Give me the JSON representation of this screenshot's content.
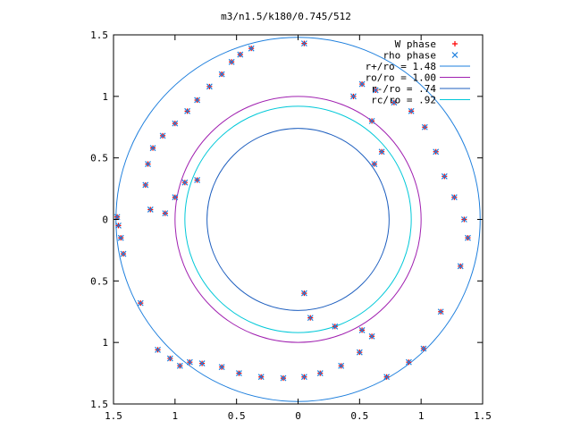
{
  "chart_data": {
    "type": "scatter",
    "title": "m3/n1.5/k180/0.745/512",
    "xlabel": "",
    "ylabel": "",
    "xlim": [
      -1.5,
      1.5
    ],
    "ylim": [
      -1.5,
      1.5
    ],
    "x_ticks": [
      -1.5,
      -1,
      -0.5,
      0,
      0.5,
      1,
      1.5
    ],
    "y_ticks": [
      1.5,
      1,
      0.5,
      0,
      -0.5,
      -1,
      -1.5
    ],
    "x_tick_labels": [
      "1.5",
      "1",
      "0.5",
      "0",
      "0.5",
      "1",
      "1.5"
    ],
    "y_tick_labels": [
      "1.5",
      "1",
      "0.5",
      "0",
      "0.5",
      "1",
      "1.5"
    ],
    "grid": false,
    "legend_position": "top-right",
    "series": [
      {
        "name": "W phase",
        "kind": "points",
        "marker": "+",
        "color": "#ff0000",
        "points": [
          [
            -1.47,
            0.02
          ],
          [
            -1.46,
            -0.05
          ],
          [
            -1.44,
            -0.15
          ],
          [
            -1.42,
            -0.28
          ],
          [
            -1.28,
            -0.68
          ],
          [
            -1.14,
            -1.06
          ],
          [
            -1.04,
            -1.13
          ],
          [
            -0.96,
            -1.19
          ],
          [
            -0.88,
            -1.16
          ],
          [
            -0.78,
            -1.17
          ],
          [
            -0.62,
            -1.2
          ],
          [
            -0.48,
            -1.25
          ],
          [
            -0.3,
            -1.28
          ],
          [
            -0.12,
            -1.29
          ],
          [
            0.05,
            -1.28
          ],
          [
            0.18,
            -1.25
          ],
          [
            0.35,
            -1.19
          ],
          [
            0.5,
            -1.08
          ],
          [
            0.6,
            -0.95
          ],
          [
            0.52,
            -0.9
          ],
          [
            0.3,
            -0.87
          ],
          [
            0.1,
            -0.8
          ],
          [
            0.05,
            -0.6
          ],
          [
            0.72,
            -1.28
          ],
          [
            0.9,
            -1.16
          ],
          [
            1.02,
            -1.05
          ],
          [
            1.16,
            -0.75
          ],
          [
            1.32,
            -0.38
          ],
          [
            1.38,
            -0.15
          ],
          [
            1.35,
            0.0
          ],
          [
            1.27,
            0.18
          ],
          [
            1.19,
            0.35
          ],
          [
            1.12,
            0.55
          ],
          [
            1.03,
            0.75
          ],
          [
            0.92,
            0.88
          ],
          [
            0.78,
            0.95
          ],
          [
            0.63,
            1.05
          ],
          [
            0.52,
            1.1
          ],
          [
            0.45,
            1.0
          ],
          [
            0.6,
            0.8
          ],
          [
            0.68,
            0.55
          ],
          [
            0.62,
            0.45
          ],
          [
            -0.38,
            1.39
          ],
          [
            -0.47,
            1.34
          ],
          [
            -0.54,
            1.28
          ],
          [
            -0.62,
            1.18
          ],
          [
            -0.72,
            1.08
          ],
          [
            -0.82,
            0.97
          ],
          [
            -0.9,
            0.88
          ],
          [
            -1.0,
            0.78
          ],
          [
            -1.1,
            0.68
          ],
          [
            -1.18,
            0.58
          ],
          [
            -1.22,
            0.45
          ],
          [
            -1.24,
            0.28
          ],
          [
            -1.2,
            0.08
          ],
          [
            -1.08,
            0.05
          ],
          [
            -1.0,
            0.18
          ],
          [
            -0.92,
            0.3
          ],
          [
            -0.82,
            0.32
          ],
          [
            0.05,
            1.43
          ]
        ]
      },
      {
        "name": "rho phase",
        "kind": "points",
        "marker": "x",
        "color": "#1e7fdd",
        "points": [
          [
            -1.47,
            0.02
          ],
          [
            -1.46,
            -0.05
          ],
          [
            -1.44,
            -0.15
          ],
          [
            -1.42,
            -0.28
          ],
          [
            -1.28,
            -0.68
          ],
          [
            -1.14,
            -1.06
          ],
          [
            -1.04,
            -1.13
          ],
          [
            -0.96,
            -1.19
          ],
          [
            -0.88,
            -1.16
          ],
          [
            -0.78,
            -1.17
          ],
          [
            -0.62,
            -1.2
          ],
          [
            -0.48,
            -1.25
          ],
          [
            -0.3,
            -1.28
          ],
          [
            -0.12,
            -1.29
          ],
          [
            0.05,
            -1.28
          ],
          [
            0.18,
            -1.25
          ],
          [
            0.35,
            -1.19
          ],
          [
            0.5,
            -1.08
          ],
          [
            0.6,
            -0.95
          ],
          [
            0.52,
            -0.9
          ],
          [
            0.3,
            -0.87
          ],
          [
            0.1,
            -0.8
          ],
          [
            0.05,
            -0.6
          ],
          [
            0.72,
            -1.28
          ],
          [
            0.9,
            -1.16
          ],
          [
            1.02,
            -1.05
          ],
          [
            1.16,
            -0.75
          ],
          [
            1.32,
            -0.38
          ],
          [
            1.38,
            -0.15
          ],
          [
            1.35,
            0.0
          ],
          [
            1.27,
            0.18
          ],
          [
            1.19,
            0.35
          ],
          [
            1.12,
            0.55
          ],
          [
            1.03,
            0.75
          ],
          [
            0.92,
            0.88
          ],
          [
            0.78,
            0.95
          ],
          [
            0.63,
            1.05
          ],
          [
            0.52,
            1.1
          ],
          [
            0.45,
            1.0
          ],
          [
            0.6,
            0.8
          ],
          [
            0.68,
            0.55
          ],
          [
            0.62,
            0.45
          ],
          [
            -0.38,
            1.39
          ],
          [
            -0.47,
            1.34
          ],
          [
            -0.54,
            1.28
          ],
          [
            -0.62,
            1.18
          ],
          [
            -0.72,
            1.08
          ],
          [
            -0.82,
            0.97
          ],
          [
            -0.9,
            0.88
          ],
          [
            -1.0,
            0.78
          ],
          [
            -1.1,
            0.68
          ],
          [
            -1.18,
            0.58
          ],
          [
            -1.22,
            0.45
          ],
          [
            -1.24,
            0.28
          ],
          [
            -1.2,
            0.08
          ],
          [
            -1.08,
            0.05
          ],
          [
            -1.0,
            0.18
          ],
          [
            -0.92,
            0.3
          ],
          [
            -0.82,
            0.32
          ],
          [
            0.05,
            1.43
          ]
        ]
      },
      {
        "name": "r+/ro = 1.48",
        "kind": "circle",
        "radius": 1.48,
        "color": "#1e7fdd"
      },
      {
        "name": "ro/ro = 1.00",
        "kind": "circle",
        "radius": 1.0,
        "color": "#a020b0"
      },
      {
        "name": "r-/ro = .74",
        "kind": "circle",
        "radius": 0.74,
        "color": "#1e5fbf"
      },
      {
        "name": "rc/ro = .92",
        "kind": "circle",
        "radius": 0.92,
        "color": "#00c8d8"
      }
    ]
  }
}
